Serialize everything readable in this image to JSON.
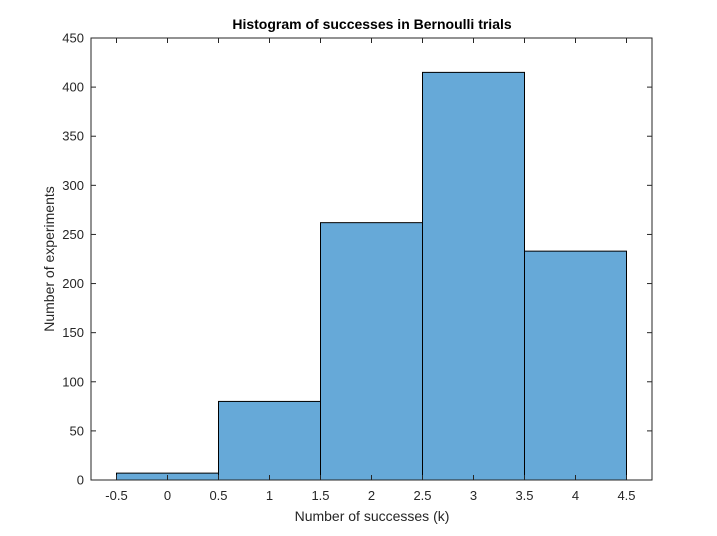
{
  "chart_data": {
    "type": "bar",
    "title": "Histogram of successes in Bernoulli trials",
    "xlabel": "Number of successes (k)",
    "ylabel": "Number of experiments",
    "bin_edges": [
      -0.5,
      0.5,
      1.5,
      2.5,
      3.5,
      4.5
    ],
    "values": [
      7,
      80,
      262,
      415,
      233
    ],
    "xlim": [
      -0.75,
      4.75
    ],
    "ylim": [
      0,
      450
    ],
    "x_ticks": [
      -0.5,
      0,
      0.5,
      1,
      1.5,
      2,
      2.5,
      3,
      3.5,
      4,
      4.5
    ],
    "x_tick_labels": [
      "-0.5",
      "0",
      "0.5",
      "1",
      "1.5",
      "2",
      "2.5",
      "3",
      "3.5",
      "4",
      "4.5"
    ],
    "y_ticks": [
      0,
      50,
      100,
      150,
      200,
      250,
      300,
      350,
      400,
      450
    ],
    "y_tick_labels": [
      "0",
      "50",
      "100",
      "150",
      "200",
      "250",
      "300",
      "350",
      "400",
      "450"
    ],
    "grid": false,
    "bar_color": "#66a9d8",
    "edge_color": "#000000"
  }
}
